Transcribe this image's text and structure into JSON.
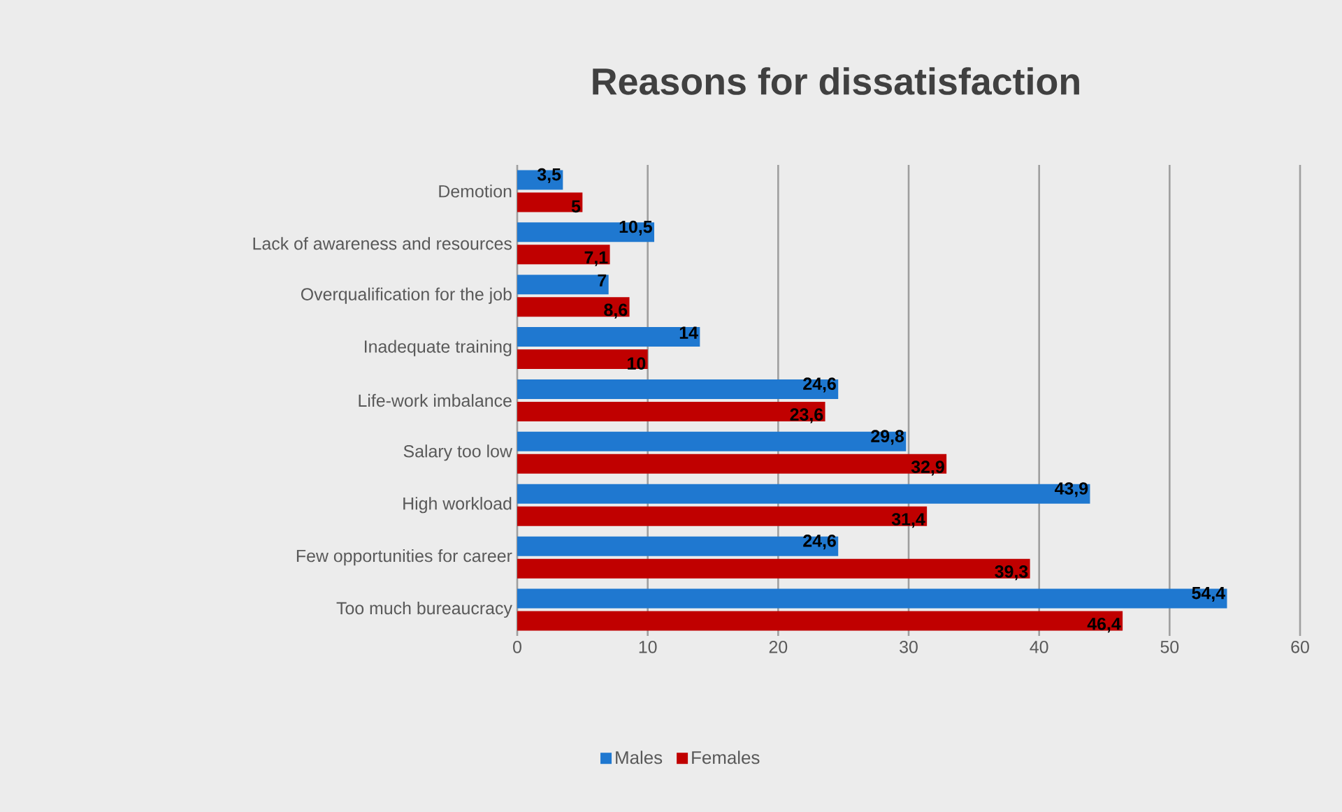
{
  "chart_data": {
    "type": "bar",
    "orientation": "horizontal",
    "title": "Reasons for dissatisfaction",
    "categories": [
      "Demotion",
      "Lack of awareness and resources",
      "Overqualification for the job",
      "Inadequate training",
      "Life-work imbalance",
      "Salary too low",
      "High workload",
      "Few opportunities for career",
      "Too much bureaucracy"
    ],
    "series": [
      {
        "name": "Males",
        "color": "#1f78d0",
        "values": [
          3.5,
          10.5,
          7,
          14,
          24.6,
          29.8,
          43.9,
          24.6,
          54.4
        ],
        "value_labels": [
          "3,5",
          "10,5",
          "7",
          "14",
          "24,6",
          "29,8",
          "43,9",
          "24,6",
          "54,4"
        ]
      },
      {
        "name": "Females",
        "color": "#c00000",
        "values": [
          5,
          7.1,
          8.6,
          10,
          23.6,
          32.9,
          31.4,
          39.3,
          46.4
        ],
        "value_labels": [
          "5",
          "7,1",
          "8,6",
          "10",
          "23,6",
          "32,9",
          "31,4",
          "39,3",
          "46,4"
        ]
      }
    ],
    "xlim": [
      0,
      60
    ],
    "xticks": [
      0,
      10,
      20,
      30,
      40,
      50,
      60
    ],
    "grid": "x",
    "legend": "bottom"
  }
}
